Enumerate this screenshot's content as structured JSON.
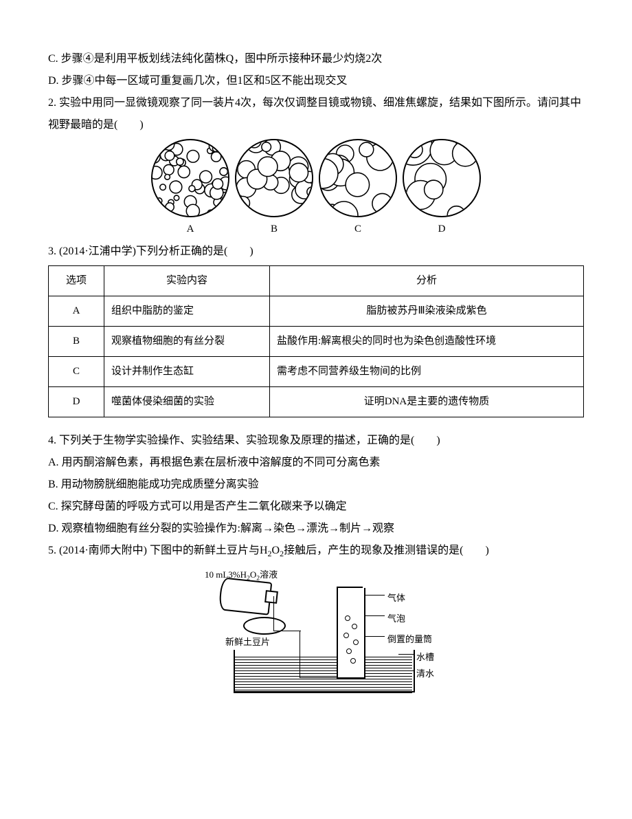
{
  "q1": {
    "optC": "C. 步骤④是利用平板划线法纯化菌株Q，图中所示接种环最少灼烧2次",
    "optD": "D. 步骤④中每一区域可重复画几次，但1区和5区不能出现交叉"
  },
  "q2": {
    "stem": "2. 实验中用同一显微镜观察了同一装片4次，每次仅调整目镜或物镜、细准焦螺旋，结果如下图所示。请问其中视野最暗的是(　　)",
    "figs": [
      {
        "label": "A",
        "cells": 42,
        "scale": 0.55
      },
      {
        "label": "B",
        "cells": 22,
        "scale": 0.85
      },
      {
        "label": "C",
        "cells": 12,
        "scale": 1.25
      },
      {
        "label": "D",
        "cells": 8,
        "scale": 1.7
      }
    ]
  },
  "q3": {
    "stem": "3. (2014·江浦中学)下列分析正确的是(　　)",
    "headers": [
      "选项",
      "实验内容",
      "分析"
    ],
    "rows": [
      {
        "opt": "A",
        "content": "组织中脂肪的鉴定",
        "analysis": "脂肪被苏丹Ⅲ染液染成紫色",
        "center": true
      },
      {
        "opt": "B",
        "content": "观察植物细胞的有丝分裂",
        "analysis": "盐酸作用:解离根尖的同时也为染色创造酸性环境",
        "center": false
      },
      {
        "opt": "C",
        "content": "设计并制作生态缸",
        "analysis": "需考虑不同营养级生物间的比例",
        "center": false
      },
      {
        "opt": "D",
        "content": "噬菌体侵染细菌的实验",
        "analysis": "证明DNA是主要的遗传物质",
        "center": true
      }
    ]
  },
  "q4": {
    "stem": "4. 下列关于生物学实验操作、实验结果、实验现象及原理的描述，正确的是(　　)",
    "optA": "A. 用丙酮溶解色素，再根据色素在层析液中溶解度的不同可分离色素",
    "optB": "B. 用动物膀胱细胞能成功完成质壁分离实验",
    "optC": "C. 探究酵母菌的呼吸方式可以用是否产生二氧化碳来予以确定",
    "optD": "D. 观察植物细胞有丝分裂的实验操作为:解离→染色→漂洗→制片→观察"
  },
  "q5": {
    "stem_pre": "5. (2014·南师大附中) 下图中的新鲜土豆片与H",
    "sub1": "2",
    "mid1": "O",
    "sub2": "2",
    "stem_post": "接触后，产生的现象及推测错误的是(　　)",
    "fig": {
      "bottle_label_pre": "10 mL3%H",
      "bottle_sub1": "2",
      "bottle_mid": "O",
      "bottle_sub2": "2",
      "bottle_label_post": "溶液",
      "potato": "新鲜土豆片",
      "gas": "气体",
      "bubble": "气泡",
      "cylinder": "倒置的量筒",
      "tank": "水槽",
      "water": "清水"
    }
  },
  "colors": {
    "ink": "#000000",
    "paper": "#ffffff"
  }
}
